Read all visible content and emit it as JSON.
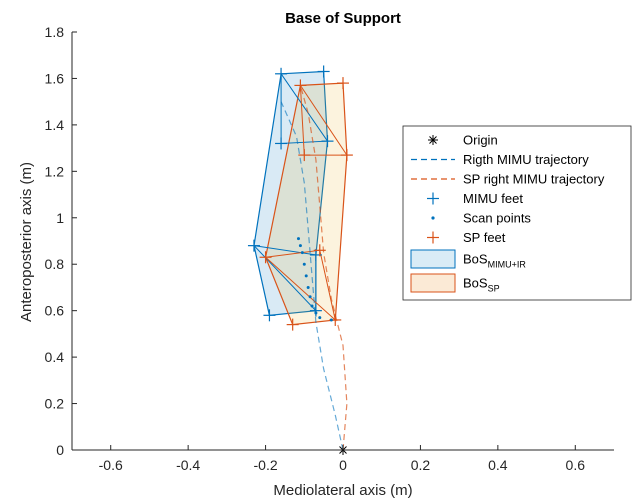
{
  "chart_data": {
    "type": "line",
    "title": "Base of Support",
    "xlabel": "Mediolateral axis (m)",
    "ylabel": "Anteroposterior axis (m)",
    "xlim": [
      -0.7,
      0.7
    ],
    "ylim": [
      0,
      1.8
    ],
    "xticks": [
      "-0.6",
      "-0.4",
      "-0.2",
      "0",
      "0.2",
      "0.4",
      "0.6"
    ],
    "xtick_values": [
      -0.6,
      -0.4,
      -0.2,
      0,
      0.2,
      0.4,
      0.6
    ],
    "yticks": [
      "0",
      "0.2",
      "0.4",
      "0.6",
      "0.8",
      "1",
      "1.2",
      "1.4",
      "1.6",
      "1.8"
    ],
    "ytick_values": [
      0,
      0.2,
      0.4,
      0.6,
      0.8,
      1.0,
      1.2,
      1.4,
      1.6,
      1.8
    ],
    "grid": false,
    "legend_position": "right",
    "colors": {
      "mimu": "#0072BD",
      "sp": "#D95319",
      "mimu_fill": "#d9ecf6",
      "sp_fill": "#fbead6",
      "origin": "#000000"
    },
    "legend": [
      {
        "key": "origin",
        "label": "Origin",
        "sub": ""
      },
      {
        "key": "rtraj",
        "label": "Rigth MIMU trajectory",
        "sub": ""
      },
      {
        "key": "sptraj",
        "label": "SP right MIMU trajectory",
        "sub": ""
      },
      {
        "key": "mimufeet",
        "label": "MIMU feet",
        "sub": ""
      },
      {
        "key": "scan",
        "label": "Scan points",
        "sub": ""
      },
      {
        "key": "spfeet",
        "label": "SP feet",
        "sub": ""
      },
      {
        "key": "bosmimu",
        "label": "BoS",
        "sub": "MIMU+IR"
      },
      {
        "key": "bossp",
        "label": "BoS",
        "sub": "SP"
      }
    ],
    "series": [
      {
        "name": "Origin",
        "marker": "asterisk",
        "points": [
          [
            0,
            0
          ]
        ]
      },
      {
        "name": "Rigth MIMU trajectory",
        "style": "dashed",
        "points": [
          [
            0,
            0
          ],
          [
            -0.02,
            0.15
          ],
          [
            -0.05,
            0.35
          ],
          [
            -0.07,
            0.55
          ],
          [
            -0.08,
            0.75
          ],
          [
            -0.09,
            0.95
          ],
          [
            -0.1,
            1.15
          ],
          [
            -0.12,
            1.35
          ],
          [
            -0.16,
            1.5
          ]
        ]
      },
      {
        "name": "SP right MIMU trajectory",
        "style": "dashed",
        "points": [
          [
            0,
            0
          ],
          [
            0.01,
            0.2
          ],
          [
            0.0,
            0.45
          ],
          [
            -0.03,
            0.65
          ],
          [
            -0.05,
            0.85
          ],
          [
            -0.06,
            1.05
          ],
          [
            -0.07,
            1.25
          ],
          [
            -0.09,
            1.45
          ],
          [
            -0.11,
            1.57
          ]
        ]
      },
      {
        "name": "MIMU feet",
        "marker": "plus",
        "points": [
          [
            -0.16,
            1.62
          ],
          [
            -0.05,
            1.63
          ],
          [
            -0.16,
            1.32
          ],
          [
            -0.04,
            1.33
          ],
          [
            -0.23,
            0.88
          ],
          [
            -0.07,
            0.6
          ],
          [
            -0.19,
            0.58
          ],
          [
            -0.07,
            0.84
          ]
        ]
      },
      {
        "name": "Scan points",
        "marker": "dot",
        "points": [
          [
            -0.115,
            0.91
          ],
          [
            -0.11,
            0.88
          ],
          [
            -0.105,
            0.85
          ],
          [
            -0.1,
            0.8
          ],
          [
            -0.095,
            0.75
          ],
          [
            -0.09,
            0.7
          ],
          [
            -0.085,
            0.66
          ],
          [
            -0.08,
            0.62
          ],
          [
            -0.07,
            0.59
          ],
          [
            -0.06,
            0.57
          ],
          [
            -0.03,
            0.56
          ]
        ]
      },
      {
        "name": "SP feet",
        "marker": "plus",
        "points": [
          [
            -0.11,
            1.57
          ],
          [
            0.0,
            1.58
          ],
          [
            -0.1,
            1.27
          ],
          [
            0.01,
            1.27
          ],
          [
            -0.2,
            0.83
          ],
          [
            -0.06,
            0.86
          ],
          [
            -0.13,
            0.54
          ],
          [
            -0.02,
            0.56
          ]
        ]
      },
      {
        "name": "BoS MIMU+IR",
        "type": "area",
        "points": [
          [
            -0.16,
            1.62
          ],
          [
            -0.05,
            1.63
          ],
          [
            -0.04,
            1.33
          ],
          [
            -0.07,
            0.84
          ],
          [
            -0.07,
            0.6
          ],
          [
            -0.19,
            0.58
          ],
          [
            -0.23,
            0.88
          ]
        ]
      },
      {
        "name": "BoS SP",
        "type": "area",
        "points": [
          [
            -0.11,
            1.57
          ],
          [
            0.0,
            1.58
          ],
          [
            0.01,
            1.27
          ],
          [
            -0.02,
            0.56
          ],
          [
            -0.13,
            0.54
          ],
          [
            -0.2,
            0.83
          ]
        ]
      }
    ],
    "inner_lines": [
      {
        "color": "mimu",
        "points": [
          [
            -0.16,
            1.62
          ],
          [
            -0.04,
            1.33
          ],
          [
            -0.16,
            1.32
          ],
          [
            -0.16,
            1.62
          ]
        ]
      },
      {
        "color": "mimu",
        "points": [
          [
            -0.23,
            0.88
          ],
          [
            -0.07,
            0.6
          ],
          [
            -0.07,
            0.84
          ],
          [
            -0.23,
            0.88
          ]
        ]
      },
      {
        "color": "sp",
        "points": [
          [
            -0.11,
            1.57
          ],
          [
            0.01,
            1.27
          ],
          [
            -0.1,
            1.27
          ],
          [
            -0.11,
            1.57
          ]
        ]
      },
      {
        "color": "sp",
        "points": [
          [
            -0.2,
            0.83
          ],
          [
            -0.02,
            0.56
          ],
          [
            -0.06,
            0.86
          ],
          [
            -0.2,
            0.83
          ]
        ]
      }
    ]
  }
}
